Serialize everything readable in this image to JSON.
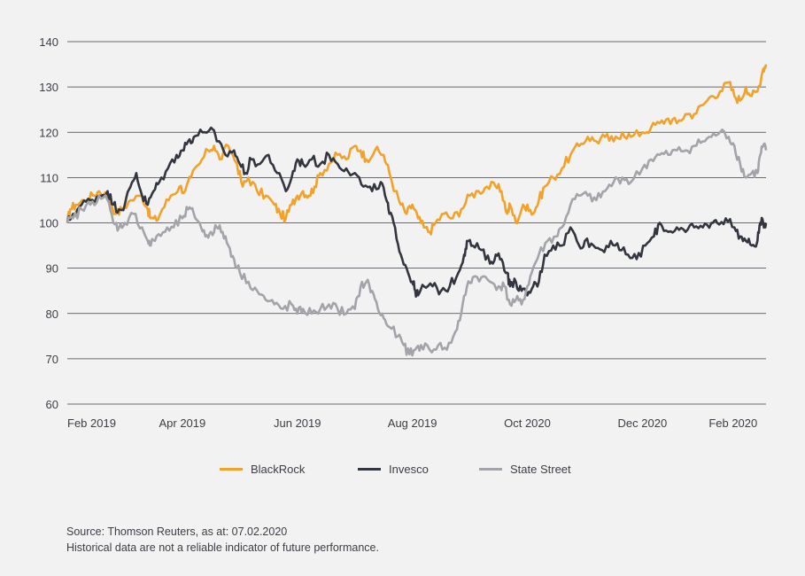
{
  "chart_data": {
    "type": "line",
    "ylim": [
      60,
      140
    ],
    "yticks": [
      60,
      70,
      80,
      90,
      100,
      110,
      120,
      130,
      140
    ],
    "grid": true,
    "legend_position": "bottom",
    "xticks": [
      {
        "label": "Feb 2019",
        "x": 0
      },
      {
        "label": "Apr 2019",
        "x": 2
      },
      {
        "label": "Jun 2019",
        "x": 4
      },
      {
        "label": "Aug 2019",
        "x": 6
      },
      {
        "label": "Oct 2020",
        "x": 8
      },
      {
        "label": "Dec 2020",
        "x": 10
      },
      {
        "label": "Feb 2020",
        "x": 12
      }
    ],
    "series": [
      {
        "name": "BlackRock",
        "color": "#f0a22b",
        "points": [
          [
            0,
            100
          ],
          [
            0.05,
            103
          ],
          [
            0.15,
            104
          ],
          [
            0.3,
            105
          ],
          [
            0.45,
            106
          ],
          [
            0.55,
            107
          ],
          [
            0.7,
            106
          ],
          [
            0.85,
            102
          ],
          [
            0.95,
            103
          ],
          [
            1.1,
            105
          ],
          [
            1.3,
            106
          ],
          [
            1.4,
            103
          ],
          [
            1.45,
            101
          ],
          [
            1.55,
            100.5
          ],
          [
            1.65,
            103
          ],
          [
            1.8,
            106
          ],
          [
            1.95,
            108
          ],
          [
            2.05,
            107
          ],
          [
            2.15,
            110
          ],
          [
            2.3,
            113
          ],
          [
            2.45,
            116
          ],
          [
            2.55,
            117
          ],
          [
            2.65,
            114
          ],
          [
            2.8,
            117
          ],
          [
            2.95,
            113
          ],
          [
            3.05,
            108
          ],
          [
            3.15,
            110
          ],
          [
            3.3,
            107
          ],
          [
            3.45,
            106
          ],
          [
            3.6,
            104
          ],
          [
            3.7,
            102
          ],
          [
            3.8,
            101
          ],
          [
            3.9,
            104
          ],
          [
            4.0,
            106
          ],
          [
            4.1,
            107
          ],
          [
            4.2,
            106
          ],
          [
            4.3,
            108
          ],
          [
            4.4,
            111
          ],
          [
            4.55,
            113
          ],
          [
            4.7,
            115
          ],
          [
            4.85,
            114
          ],
          [
            5.0,
            117
          ],
          [
            5.1,
            116
          ],
          [
            5.2,
            114
          ],
          [
            5.35,
            116
          ],
          [
            5.5,
            115
          ],
          [
            5.6,
            111
          ],
          [
            5.7,
            107
          ],
          [
            5.8,
            104
          ],
          [
            5.9,
            102
          ],
          [
            6.0,
            104
          ],
          [
            6.1,
            101
          ],
          [
            6.2,
            99
          ],
          [
            6.3,
            98
          ],
          [
            6.4,
            100
          ],
          [
            6.55,
            102
          ],
          [
            6.7,
            101
          ],
          [
            6.85,
            103
          ],
          [
            7.0,
            106
          ],
          [
            7.15,
            107
          ],
          [
            7.3,
            108
          ],
          [
            7.45,
            108
          ],
          [
            7.55,
            107
          ],
          [
            7.65,
            102
          ],
          [
            7.7,
            104
          ],
          [
            7.8,
            100
          ],
          [
            7.9,
            103
          ],
          [
            8.0,
            104
          ],
          [
            8.1,
            102
          ],
          [
            8.2,
            105
          ],
          [
            8.3,
            108
          ],
          [
            8.45,
            110
          ],
          [
            8.6,
            112
          ],
          [
            8.75,
            115
          ],
          [
            8.9,
            117
          ],
          [
            9.05,
            119
          ],
          [
            9.2,
            118
          ],
          [
            9.35,
            119
          ],
          [
            9.5,
            118
          ],
          [
            9.65,
            120
          ],
          [
            9.8,
            119
          ],
          [
            10.0,
            120
          ],
          [
            10.15,
            121
          ],
          [
            10.3,
            122
          ],
          [
            10.45,
            123
          ],
          [
            10.6,
            122
          ],
          [
            10.75,
            124
          ],
          [
            10.9,
            124
          ],
          [
            11.05,
            126
          ],
          [
            11.2,
            128
          ],
          [
            11.35,
            129
          ],
          [
            11.5,
            131
          ],
          [
            11.6,
            128
          ],
          [
            11.7,
            127
          ],
          [
            11.8,
            130
          ],
          [
            11.9,
            128
          ],
          [
            12.0,
            129
          ],
          [
            12.1,
            134
          ],
          [
            12.15,
            135
          ]
        ]
      },
      {
        "name": "Invesco",
        "color": "#33353f",
        "points": [
          [
            0,
            100
          ],
          [
            0.1,
            102
          ],
          [
            0.25,
            104
          ],
          [
            0.4,
            105
          ],
          [
            0.55,
            106
          ],
          [
            0.7,
            107
          ],
          [
            0.8,
            104
          ],
          [
            0.9,
            103
          ],
          [
            1.0,
            104
          ],
          [
            1.1,
            108
          ],
          [
            1.2,
            111
          ],
          [
            1.3,
            106
          ],
          [
            1.4,
            104
          ],
          [
            1.5,
            107
          ],
          [
            1.6,
            109
          ],
          [
            1.75,
            112
          ],
          [
            1.9,
            115
          ],
          [
            2.0,
            116
          ],
          [
            2.1,
            118
          ],
          [
            2.2,
            119
          ],
          [
            2.35,
            120
          ],
          [
            2.5,
            121
          ],
          [
            2.6,
            118
          ],
          [
            2.75,
            115
          ],
          [
            2.9,
            116
          ],
          [
            3.0,
            113
          ],
          [
            3.1,
            111
          ],
          [
            3.2,
            114
          ],
          [
            3.35,
            113
          ],
          [
            3.5,
            115
          ],
          [
            3.65,
            111
          ],
          [
            3.8,
            107
          ],
          [
            3.9,
            110
          ],
          [
            4.0,
            114
          ],
          [
            4.1,
            113
          ],
          [
            4.25,
            114
          ],
          [
            4.4,
            113
          ],
          [
            4.55,
            115
          ],
          [
            4.7,
            113
          ],
          [
            4.85,
            112
          ],
          [
            5.0,
            111
          ],
          [
            5.15,
            108
          ],
          [
            5.3,
            107
          ],
          [
            5.45,
            109
          ],
          [
            5.55,
            105
          ],
          [
            5.6,
            102
          ],
          [
            5.7,
            99
          ],
          [
            5.8,
            93
          ],
          [
            5.9,
            90
          ],
          [
            6.0,
            87
          ],
          [
            6.05,
            85
          ],
          [
            6.1,
            84
          ],
          [
            6.2,
            86
          ],
          [
            6.35,
            86
          ],
          [
            6.5,
            85
          ],
          [
            6.65,
            86
          ],
          [
            6.8,
            89
          ],
          [
            6.9,
            93
          ],
          [
            6.95,
            96
          ],
          [
            7.05,
            95
          ],
          [
            7.2,
            94
          ],
          [
            7.35,
            91
          ],
          [
            7.45,
            93
          ],
          [
            7.55,
            92
          ],
          [
            7.65,
            89
          ],
          [
            7.7,
            86
          ],
          [
            7.8,
            87
          ],
          [
            7.9,
            85
          ],
          [
            8.0,
            84
          ],
          [
            8.1,
            86
          ],
          [
            8.2,
            87
          ],
          [
            8.3,
            93
          ],
          [
            8.45,
            95
          ],
          [
            8.6,
            95
          ],
          [
            8.75,
            99
          ],
          [
            8.9,
            95
          ],
          [
            9.0,
            96
          ],
          [
            9.15,
            95
          ],
          [
            9.3,
            94
          ],
          [
            9.45,
            96
          ],
          [
            9.6,
            94
          ],
          [
            9.75,
            93
          ],
          [
            9.9,
            92
          ],
          [
            10.05,
            95
          ],
          [
            10.2,
            97
          ],
          [
            10.3,
            100
          ],
          [
            10.45,
            98
          ],
          [
            10.6,
            99
          ],
          [
            10.75,
            98
          ],
          [
            10.9,
            99
          ],
          [
            11.05,
            99
          ],
          [
            11.2,
            100
          ],
          [
            11.3,
            100
          ],
          [
            11.45,
            101
          ],
          [
            11.6,
            99
          ],
          [
            11.7,
            97
          ],
          [
            11.8,
            96
          ],
          [
            11.9,
            95
          ],
          [
            12.0,
            96
          ],
          [
            12.05,
            100
          ],
          [
            12.1,
            100
          ],
          [
            12.15,
            100
          ]
        ]
      },
      {
        "name": "State Street",
        "color": "#a3a3aa",
        "points": [
          [
            0,
            100
          ],
          [
            0.1,
            101
          ],
          [
            0.25,
            103
          ],
          [
            0.4,
            104
          ],
          [
            0.55,
            106
          ],
          [
            0.7,
            105
          ],
          [
            0.8,
            100
          ],
          [
            0.9,
            99
          ],
          [
            1.0,
            100
          ],
          [
            1.15,
            102
          ],
          [
            1.3,
            99
          ],
          [
            1.4,
            96
          ],
          [
            1.45,
            95
          ],
          [
            1.55,
            97
          ],
          [
            1.7,
            98
          ],
          [
            1.85,
            99
          ],
          [
            2.0,
            101
          ],
          [
            2.1,
            103
          ],
          [
            2.2,
            102
          ],
          [
            2.3,
            100
          ],
          [
            2.4,
            97
          ],
          [
            2.5,
            98
          ],
          [
            2.6,
            99
          ],
          [
            2.7,
            98
          ],
          [
            2.8,
            95
          ],
          [
            2.9,
            92
          ],
          [
            3.0,
            89
          ],
          [
            3.15,
            87
          ],
          [
            3.3,
            85
          ],
          [
            3.45,
            83
          ],
          [
            3.6,
            82
          ],
          [
            3.75,
            81
          ],
          [
            3.9,
            82
          ],
          [
            4.0,
            80
          ],
          [
            4.1,
            81
          ],
          [
            4.25,
            80
          ],
          [
            4.4,
            81
          ],
          [
            4.55,
            82
          ],
          [
            4.7,
            81
          ],
          [
            4.85,
            80
          ],
          [
            5.0,
            81
          ],
          [
            5.1,
            86
          ],
          [
            5.2,
            87
          ],
          [
            5.3,
            85
          ],
          [
            5.4,
            81
          ],
          [
            5.5,
            79
          ],
          [
            5.6,
            77
          ],
          [
            5.75,
            75
          ],
          [
            5.85,
            73
          ],
          [
            5.95,
            71
          ],
          [
            6.05,
            72
          ],
          [
            6.15,
            73
          ],
          [
            6.3,
            72
          ],
          [
            6.45,
            73
          ],
          [
            6.6,
            72
          ],
          [
            6.75,
            76
          ],
          [
            6.85,
            80
          ],
          [
            6.95,
            86
          ],
          [
            7.05,
            88
          ],
          [
            7.2,
            88
          ],
          [
            7.35,
            87
          ],
          [
            7.5,
            86
          ],
          [
            7.6,
            86
          ],
          [
            7.7,
            82
          ],
          [
            7.8,
            83
          ],
          [
            7.9,
            82
          ],
          [
            8.0,
            86
          ],
          [
            8.1,
            90
          ],
          [
            8.2,
            93
          ],
          [
            8.35,
            96
          ],
          [
            8.5,
            97
          ],
          [
            8.6,
            99
          ],
          [
            8.75,
            104
          ],
          [
            8.9,
            106
          ],
          [
            9.05,
            106
          ],
          [
            9.2,
            105
          ],
          [
            9.35,
            107
          ],
          [
            9.5,
            109
          ],
          [
            9.65,
            110
          ],
          [
            9.8,
            109
          ],
          [
            10.0,
            112
          ],
          [
            10.15,
            114
          ],
          [
            10.3,
            115
          ],
          [
            10.45,
            115
          ],
          [
            10.6,
            116
          ],
          [
            10.75,
            116
          ],
          [
            10.9,
            117
          ],
          [
            11.05,
            118
          ],
          [
            11.2,
            119
          ],
          [
            11.35,
            120
          ],
          [
            11.5,
            119
          ],
          [
            11.6,
            117
          ],
          [
            11.7,
            113
          ],
          [
            11.8,
            110
          ],
          [
            11.9,
            111
          ],
          [
            12.0,
            111
          ],
          [
            12.05,
            115
          ],
          [
            12.1,
            117
          ],
          [
            12.15,
            116
          ]
        ]
      }
    ]
  },
  "footnote": {
    "line1": "Source: Thomson Reuters, as at: 07.02.2020",
    "line2": "Historical data are not a reliable indicator of future performance."
  }
}
